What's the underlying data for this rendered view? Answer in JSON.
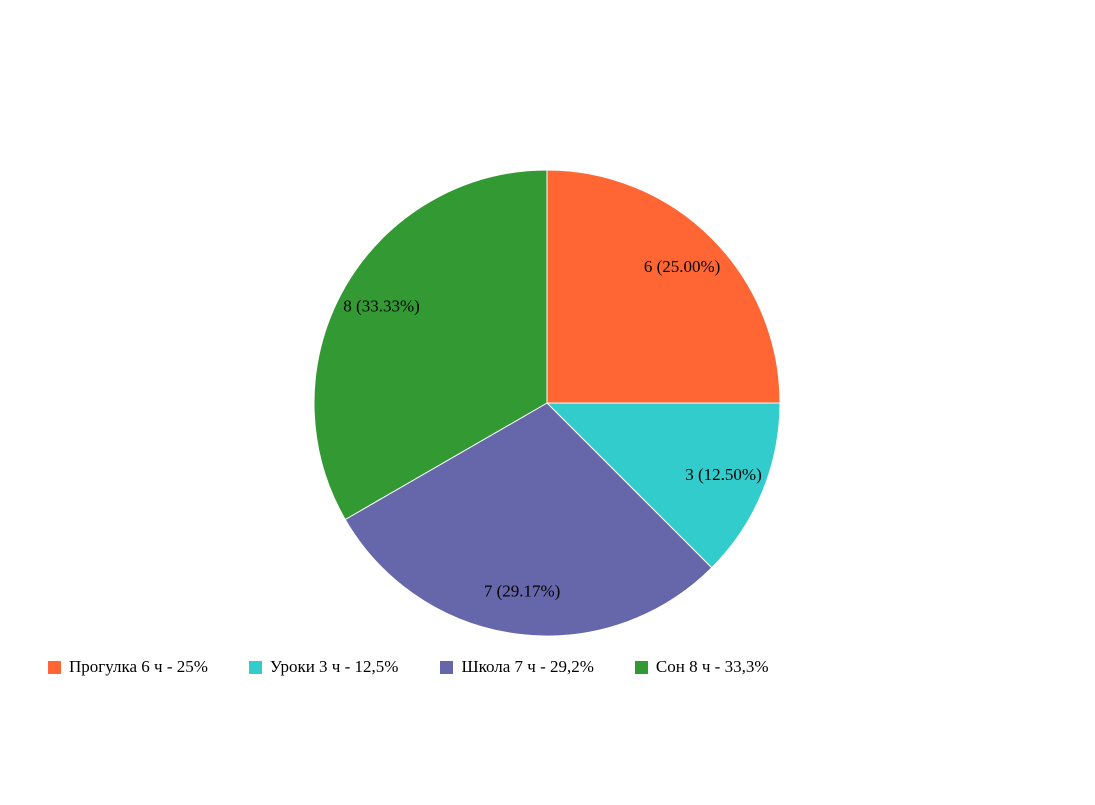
{
  "chart_data": {
    "type": "pie",
    "title": "",
    "slices": [
      {
        "label": "Прогулка 6 ч - 25%",
        "value": 6,
        "data_label": "6 (25.00%)",
        "color": "#ff6633"
      },
      {
        "label": "Уроки 3 ч - 12,5%",
        "value": 3,
        "data_label": "3 (12.50%)",
        "color": "#33cccc"
      },
      {
        "label": "Школа 7 ч - 29,2%",
        "value": 7,
        "data_label": "7 (29.17%)",
        "color": "#6666aa"
      },
      {
        "label": "Сон 8 ч - 33,3%",
        "value": 8,
        "data_label": "8 (33.33%)",
        "color": "#339933"
      }
    ],
    "start_angle": "top, clockwise",
    "legend_position": "bottom"
  }
}
